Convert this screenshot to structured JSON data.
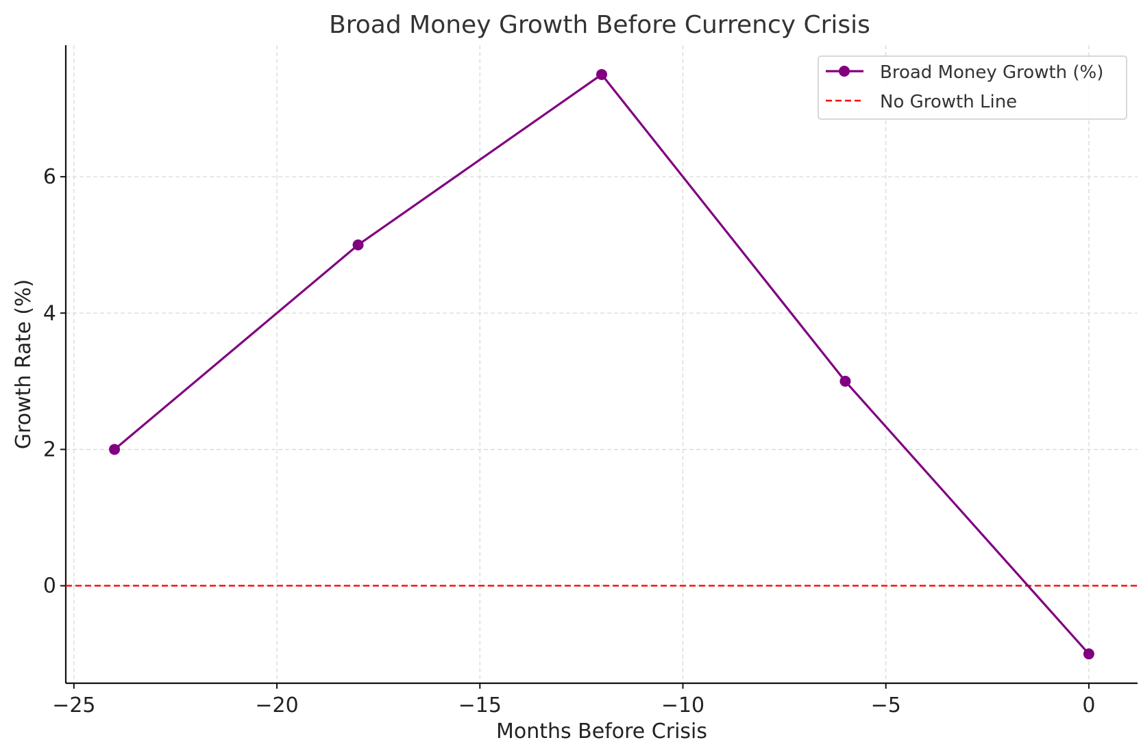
{
  "chart_data": {
    "type": "line",
    "title": "Broad Money Growth Before Currency Crisis",
    "xlabel": "Months Before Crisis",
    "ylabel": "Growth Rate (%)",
    "xlim": [
      -25.2,
      1.2
    ],
    "ylim": [
      -1.43,
      7.93
    ],
    "xticks": [
      -25,
      -20,
      -15,
      -10,
      -5,
      0
    ],
    "xtick_labels": [
      "−25",
      "−20",
      "−15",
      "−10",
      "−5",
      "0"
    ],
    "yticks": [
      0,
      2,
      4,
      6
    ],
    "ytick_labels": [
      "0",
      "2",
      "4",
      "6"
    ],
    "grid": true,
    "legend_position": "top-right",
    "series": [
      {
        "name": "Broad Money Growth (%)",
        "color": "#800080",
        "marker": "circle",
        "x": [
          -24,
          -18,
          -12,
          -6,
          0
        ],
        "y": [
          2,
          5,
          7.5,
          3,
          -1
        ]
      }
    ],
    "reference_lines": [
      {
        "name": "No Growth Line",
        "orientation": "horizontal",
        "y": 0,
        "color": "#ff0000",
        "style": "dashed"
      }
    ]
  }
}
